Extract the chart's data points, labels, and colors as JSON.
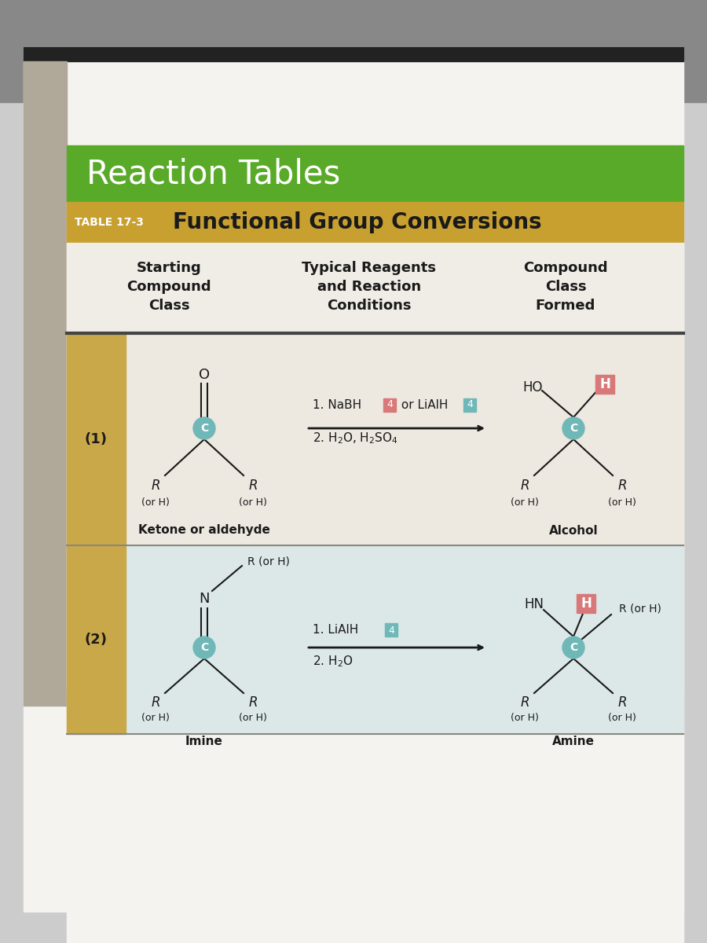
{
  "page_bg_top": "#d8d8d8",
  "page_bg_bottom": "#e8e8e8",
  "book_page_bg": "#e0ddd8",
  "white_page_bg": "#f0eeea",
  "dark_bar_color": "#333333",
  "green_banner_color": "#5aaa2a",
  "green_banner_text": "Reaction Tables",
  "gold_banner_color": "#c8a030",
  "gold_banner_label": "TABLE 17-3",
  "gold_banner_title": "Functional Group Conversions",
  "header_col1": "Starting\nCompound\nClass",
  "header_col2": "Typical Reagents\nand Reaction\nConditions",
  "header_col3": "Compound\nClass\nFormed",
  "row1_label": "(1)",
  "row1_start_name": "Ketone or aldehyde",
  "row1_reagent1_text": "1. NaBH",
  "row1_reagent1_mid": " or LiAlH",
  "row1_reagent2": "2. H₂O, H₂SO₄",
  "row1_product_name": "Alcohol",
  "row2_label": "(2)",
  "row2_start_name": "Imine",
  "row2_reagent1_text": "1. LiAlH",
  "row2_reagent2": "2. H₂O",
  "row2_product_name": "Amine",
  "teal_color": "#70b8b8",
  "pink_color": "#d87878",
  "text_color": "#1a1a1a",
  "row1_bg": "#ede8e0",
  "row2_bg": "#dce8e8",
  "row_accent_color": "#c8a848",
  "table_border_color": "#888880"
}
